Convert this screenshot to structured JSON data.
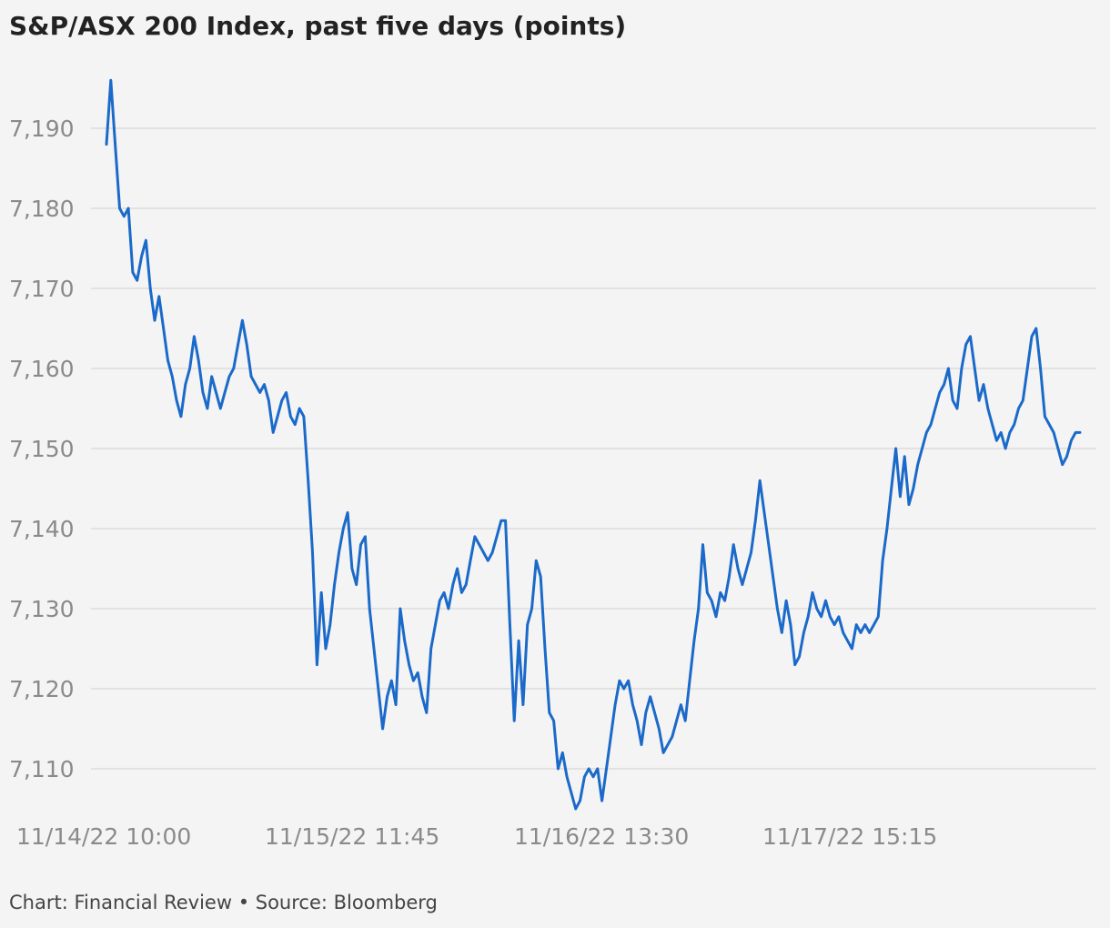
{
  "chart_data": {
    "type": "line",
    "title": "S&P/ASX 200 Index, past five days (points)",
    "xlabel": "",
    "ylabel": "",
    "ylim": [
      7104,
      7198
    ],
    "yticks": [
      7110,
      7120,
      7130,
      7140,
      7150,
      7160,
      7170,
      7180,
      7190
    ],
    "ytick_labels": [
      "7,110",
      "7,120",
      "7,130",
      "7,140",
      "7,150",
      "7,160",
      "7,170",
      "7,180",
      "7,190"
    ],
    "xtick_labels": [
      "11/14/22 10:00",
      "11/15/22 11:45",
      "11/16/22 13:30",
      "11/17/22 15:15"
    ],
    "grid": true,
    "legend": "none",
    "color": "#1b6ac9",
    "series": [
      {
        "values": [
          7188,
          7196,
          7188,
          7180,
          7179,
          7180,
          7172,
          7171,
          7174,
          7176,
          7170,
          7166,
          7169,
          7165,
          7161,
          7159,
          7156,
          7154,
          7158,
          7160,
          7164,
          7161,
          7157,
          7155,
          7159,
          7157,
          7155,
          7157,
          7159,
          7160,
          7163,
          7166,
          7163,
          7159,
          7158,
          7157,
          7158,
          7156,
          7152,
          7154,
          7156,
          7157,
          7154,
          7153,
          7155,
          7154,
          7146,
          7137,
          7123,
          7132,
          7125,
          7128,
          7133,
          7137,
          7140,
          7142,
          7135,
          7133,
          7138,
          7139,
          7130,
          7125,
          7120,
          7115,
          7119,
          7121,
          7118,
          7130,
          7126,
          7123,
          7121,
          7122,
          7119,
          7117,
          7125,
          7128,
          7131,
          7132,
          7130,
          7133,
          7135,
          7132,
          7133,
          7136,
          7139,
          7138,
          7137,
          7136,
          7137,
          7139,
          7141,
          7141,
          7128,
          7116,
          7126,
          7118,
          7128,
          7130,
          7136,
          7134,
          7125,
          7117,
          7116,
          7110,
          7112,
          7109,
          7107,
          7105,
          7106,
          7109,
          7110,
          7109,
          7110,
          7106,
          7110,
          7114,
          7118,
          7121,
          7120,
          7121,
          7118,
          7116,
          7113,
          7117,
          7119,
          7117,
          7115,
          7112,
          7113,
          7114,
          7116,
          7118,
          7116,
          7121,
          7126,
          7130,
          7138,
          7132,
          7131,
          7129,
          7132,
          7131,
          7134,
          7138,
          7135,
          7133,
          7135,
          7137,
          7141,
          7146,
          7142,
          7138,
          7134,
          7130,
          7127,
          7131,
          7128,
          7123,
          7124,
          7127,
          7129,
          7132,
          7130,
          7129,
          7131,
          7129,
          7128,
          7129,
          7127,
          7126,
          7125,
          7128,
          7127,
          7128,
          7127,
          7128,
          7129,
          7136,
          7140,
          7145,
          7150,
          7144,
          7149,
          7143,
          7145,
          7148,
          7150,
          7152,
          7153,
          7155,
          7157,
          7158,
          7160,
          7156,
          7155,
          7160,
          7163,
          7164,
          7160,
          7156,
          7158,
          7155,
          7153,
          7151,
          7152,
          7150,
          7152,
          7153,
          7155,
          7156,
          7160,
          7164,
          7165,
          7160,
          7154,
          7153,
          7152,
          7150,
          7148,
          7149,
          7151,
          7152,
          7152
        ]
      }
    ],
    "footer": "Chart: Financial Review • Source: Bloomberg"
  }
}
